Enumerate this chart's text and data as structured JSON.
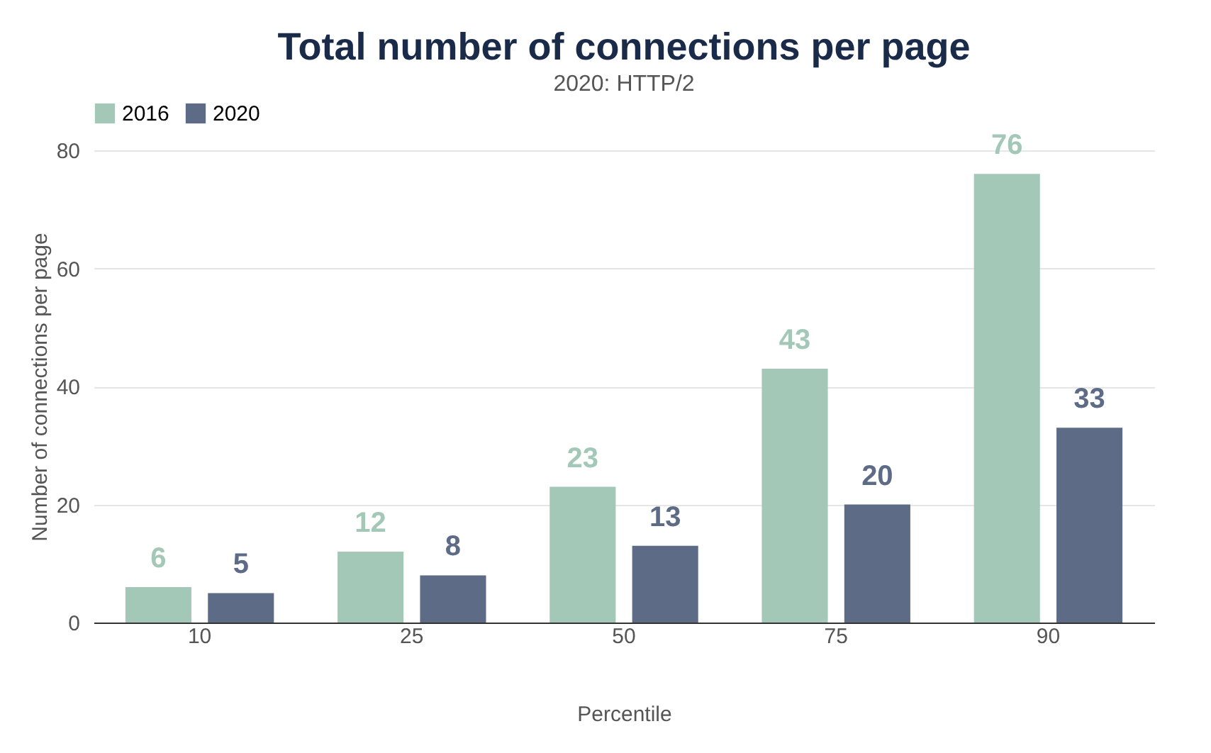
{
  "chart_data": {
    "type": "bar",
    "title": "Total number of connections per page",
    "subtitle": "2020: HTTP/2",
    "xlabel": "Percentile",
    "ylabel": "Number of connections per page",
    "categories": [
      "10",
      "25",
      "50",
      "75",
      "90"
    ],
    "series": [
      {
        "name": "2016",
        "color": "#a4c8b8",
        "values": [
          6,
          12,
          23,
          43,
          76
        ]
      },
      {
        "name": "2020",
        "color": "#5d6b87",
        "values": [
          5,
          8,
          13,
          20,
          33
        ]
      }
    ],
    "ylim": [
      0,
      80
    ],
    "yticks": [
      0,
      20,
      40,
      60,
      80
    ],
    "grid": "y",
    "legend": "top",
    "data_labels": true
  }
}
